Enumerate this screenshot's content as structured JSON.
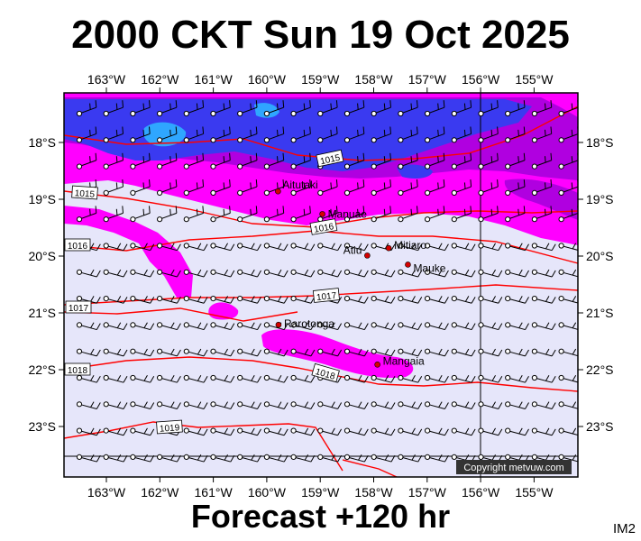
{
  "header": {
    "title": "2000 CKT Sun 19 Oct 2025"
  },
  "footer": {
    "forecast": "Forecast +120 hr",
    "image_code": "IM2",
    "copyright": "Copyright metvuw.com"
  },
  "map": {
    "lon_labels": [
      "163°W",
      "162°W",
      "161°W",
      "160°W",
      "159°W",
      "158°W",
      "157°W",
      "156°W",
      "155°W"
    ],
    "lat_labels": [
      "18°S",
      "19°S",
      "20°S",
      "21°S",
      "22°S",
      "23°S"
    ],
    "places": [
      {
        "name": "Aitutaki",
        "lon": -159.79,
        "lat": -18.86
      },
      {
        "name": "Manuae",
        "lon": -158.96,
        "lat": -19.26
      },
      {
        "name": "Atiu",
        "lon": -158.12,
        "lat": -19.99
      },
      {
        "name": "Mitiaro",
        "lon": -157.72,
        "lat": -19.86
      },
      {
        "name": "Mauke",
        "lon": -157.36,
        "lat": -20.15
      },
      {
        "name": "Rarotonga",
        "lon": -159.78,
        "lat": -21.21
      },
      {
        "name": "Mangaia",
        "lon": -157.93,
        "lat": -21.91
      }
    ],
    "isobars": [
      {
        "label": "1015"
      },
      {
        "label": "1015"
      },
      {
        "label": "1016"
      },
      {
        "label": "1016"
      },
      {
        "label": "1017"
      },
      {
        "label": "1017"
      },
      {
        "label": "1018"
      },
      {
        "label": "1018"
      },
      {
        "label": "1019"
      }
    ],
    "colors": {
      "ocean": "#e6e6fa",
      "magenta": "#ff00ff",
      "purple": "#b000e0",
      "blue": "#3a3af0",
      "cyan": "#2fa6ff",
      "isobar": "#ff0000",
      "dot": "#d40000"
    }
  }
}
